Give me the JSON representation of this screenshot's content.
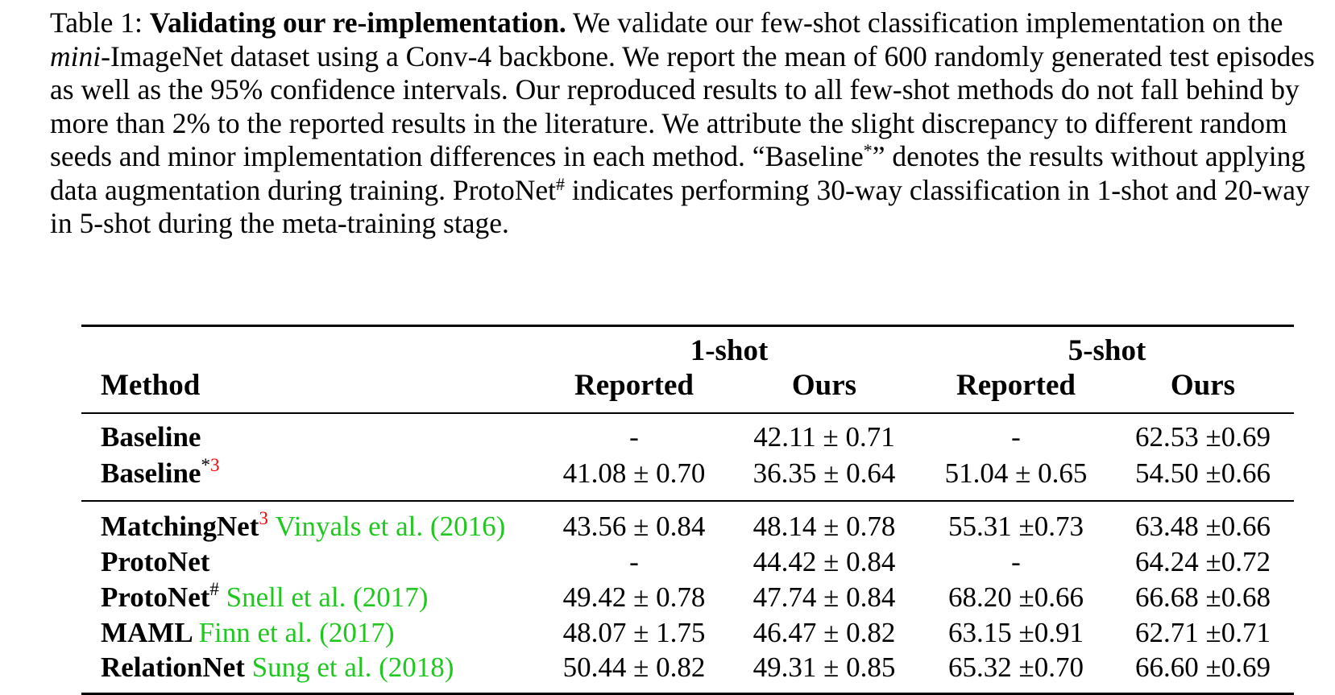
{
  "caption": {
    "label": "Table 1:",
    "title": "Validating our re-implementation.",
    "part1": "We validate our few-shot classification implementation on the",
    "italic": "mini",
    "part2": "-ImageNet dataset using a Conv-4 backbone. We report the mean of 600 randomly generated test episodes as well as the 95% confidence intervals. Our reproduced results to all few-shot methods do not fall behind by more than 2% to the reported results in the literature. We attribute the slight discrepancy to different random seeds and minor implementation differences in each method. “Baseline",
    "sup_asterisk": "*",
    "part3": "” denotes the results without applying data augmentation during training. ProtoNet",
    "sup_hash": "#",
    "part4": "indicates performing 30-way classification in 1-shot and 20-way in 5-shot during the meta-training stage."
  },
  "table": {
    "group_headers": [
      "1-shot",
      "5-shot"
    ],
    "headers": [
      "Method",
      "Reported",
      "Ours",
      "Reported",
      "Ours"
    ],
    "rows": [
      {
        "name": "Baseline",
        "sup": "",
        "sup2": "",
        "cite": "",
        "year": "",
        "cells": [
          "-",
          "42.11 ± 0.71",
          "-",
          "62.53 ±0.69"
        ]
      },
      {
        "name": "Baseline",
        "sup": "*",
        "sup2": "3",
        "cite": "",
        "year": "",
        "cells": [
          "41.08 ± 0.70",
          "36.35 ± 0.64",
          "51.04 ± 0.65",
          "54.50 ±0.66"
        ]
      },
      {
        "name": "MatchingNet",
        "sup": "",
        "sup2": "3",
        "cite": "Vinyals et al.",
        "year": "2016",
        "cells": [
          "43.56 ± 0.84",
          "48.14 ± 0.78",
          "55.31 ±0.73",
          "63.48 ±0.66"
        ]
      },
      {
        "name": "ProtoNet",
        "sup": "",
        "sup2": "",
        "cite": "",
        "year": "",
        "cells": [
          "-",
          "44.42 ± 0.84",
          "-",
          "64.24 ±0.72"
        ]
      },
      {
        "name": "ProtoNet",
        "sup": "#",
        "sup2": "",
        "cite": "Snell et al.",
        "year": "2017",
        "cells": [
          "49.42 ± 0.78",
          "47.74 ± 0.84",
          "68.20 ±0.66",
          "66.68 ±0.68"
        ]
      },
      {
        "name": "MAML",
        "sup": "",
        "sup2": "",
        "cite": "Finn et al.",
        "year": "2017",
        "cells": [
          "48.07 ± 1.75",
          "46.47 ± 0.82",
          "63.15 ±0.91",
          "62.71 ±0.71"
        ]
      },
      {
        "name": "RelationNet",
        "sup": "",
        "sup2": "",
        "cite": "Sung et al.",
        "year": "2018",
        "cells": [
          "50.44 ± 0.82",
          "49.31 ± 0.85",
          "65.32 ±0.70",
          "66.60 ±0.69"
        ]
      }
    ]
  }
}
